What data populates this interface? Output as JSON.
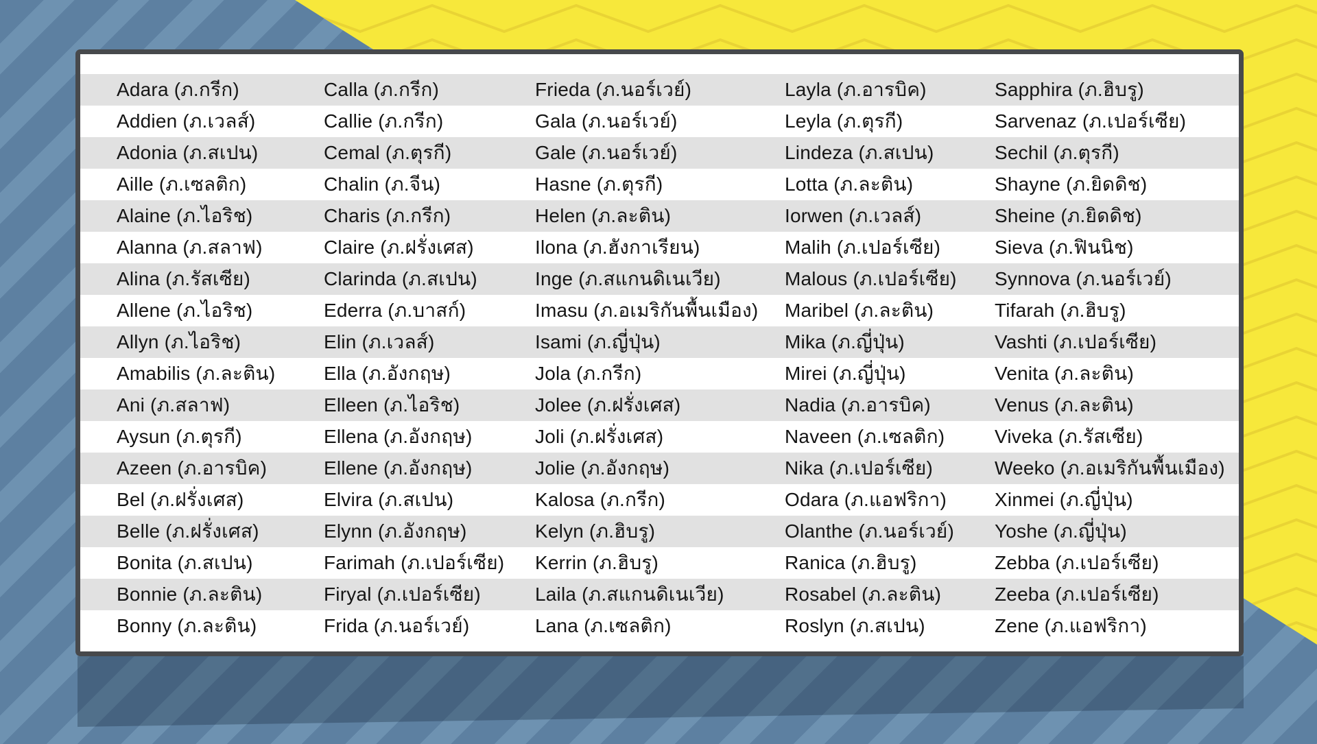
{
  "colors": {
    "bg_blue": "#5d80a1",
    "bg_blue_stripe": "#6e92b1",
    "shadow": "rgba(16,34,52,0.30)",
    "yellow": "#f7e83b",
    "yellow_line": "#e9d434",
    "card_border": "#47494c",
    "card_bg": "#ffffff",
    "row_alt": "#e1e1e1",
    "text": "#151515"
  },
  "table": {
    "rows": 18,
    "columns": [
      [
        "Adara (ภ.กรีก)",
        "Addien (ภ.เวลส์)",
        "Adonia (ภ.สเปน)",
        "Aille (ภ.เซลติก)",
        "Alaine (ภ.ไอริช)",
        "Alanna (ภ.สลาฟ)",
        "Alina (ภ.รัสเซีย)",
        "Allene (ภ.ไอริช)",
        "Allyn (ภ.ไอริช)",
        "Amabilis (ภ.ละติน)",
        "Ani (ภ.สลาฟ)",
        "Aysun (ภ.ตุรกี)",
        "Azeen (ภ.อารบิค)",
        "Bel (ภ.ฝรั่งเศส)",
        "Belle (ภ.ฝรั่งเศส)",
        "Bonita (ภ.สเปน)",
        "Bonnie (ภ.ละติน)",
        "Bonny (ภ.ละติน)"
      ],
      [
        "Calla (ภ.กรีก)",
        "Callie (ภ.กรีก)",
        "Cemal (ภ.ตุรกี)",
        "Chalin (ภ.จีน)",
        "Charis (ภ.กรีก)",
        "Claire (ภ.ฝรั่งเศส)",
        "Clarinda (ภ.สเปน)",
        "Ederra (ภ.บาสก์)",
        "Elin (ภ.เวลส์)",
        "Ella (ภ.อังกฤษ)",
        "Elleen (ภ.ไอริช)",
        "Ellena (ภ.อังกฤษ)",
        "Ellene (ภ.อังกฤษ)",
        "Elvira (ภ.สเปน)",
        "Elynn (ภ.อังกฤษ)",
        "Farimah (ภ.เปอร์เซีย)",
        "Firyal (ภ.เปอร์เซีย)",
        "Frida (ภ.นอร์เวย์)"
      ],
      [
        "Frieda (ภ.นอร์เวย์)",
        "Gala (ภ.นอร์เวย์)",
        "Gale (ภ.นอร์เวย์)",
        "Hasne (ภ.ตุรกี)",
        "Helen (ภ.ละติน)",
        "Ilona (ภ.ฮังกาเรียน)",
        "Inge (ภ.สแกนดิเนเวีย)",
        "Imasu (ภ.อเมริกันพื้นเมือง)",
        "Isami (ภ.ญี่ปุ่น)",
        "Jola (ภ.กรีก)",
        "Jolee (ภ.ฝรั่งเศส)",
        "Joli (ภ.ฝรั่งเศส)",
        "Jolie (ภ.อังกฤษ)",
        "Kalosa (ภ.กรีก)",
        "Kelyn (ภ.ฮิบรู)",
        "Kerrin (ภ.ฮิบรู)",
        "Laila (ภ.สแกนดิเนเวีย)",
        "Lana (ภ.เซลติก)"
      ],
      [
        "Layla (ภ.อารบิค)",
        "Leyla (ภ.ตุรกี)",
        "Lindeza (ภ.สเปน)",
        "Lotta (ภ.ละติน)",
        "Iorwen (ภ.เวลส์)",
        "Malih (ภ.เปอร์เซีย)",
        "Malous (ภ.เปอร์เซีย)",
        "Maribel (ภ.ละติน)",
        "Mika (ภ.ญี่ปุ่น)",
        "Mirei (ภ.ญี่ปุ่น)",
        "Nadia (ภ.อารบิค)",
        "Naveen (ภ.เซลติก)",
        "Nika (ภ.เปอร์เซีย)",
        "Odara (ภ.แอฟริกา)",
        "Olanthe (ภ.นอร์เวย์)",
        "Ranica (ภ.ฮิบรู)",
        "Rosabel (ภ.ละติน)",
        "Roslyn (ภ.สเปน)"
      ],
      [
        "Sapphira (ภ.ฮิบรู)",
        "Sarvenaz (ภ.เปอร์เซีย)",
        "Sechil (ภ.ตุรกี)",
        "Shayne (ภ.ยิดดิช)",
        "Sheine (ภ.ยิดดิช)",
        "Sieva (ภ.ฟินนิช)",
        "Synnova (ภ.นอร์เวย์)",
        "Tifarah (ภ.ฮิบรู)",
        "Vashti (ภ.เปอร์เซีย)",
        "Venita (ภ.ละติน)",
        "Venus (ภ.ละติน)",
        "Viveka (ภ.รัสเซีย)",
        "Weeko (ภ.อเมริกันพื้นเมือง)",
        "Xinmei (ภ.ญี่ปุ่น)",
        "Yoshe (ภ.ญี่ปุ่น)",
        "Zebba (ภ.เปอร์เซีย)",
        "Zeeba (ภ.เปอร์เซีย)",
        "Zene (ภ.แอฟริกา)"
      ]
    ]
  }
}
